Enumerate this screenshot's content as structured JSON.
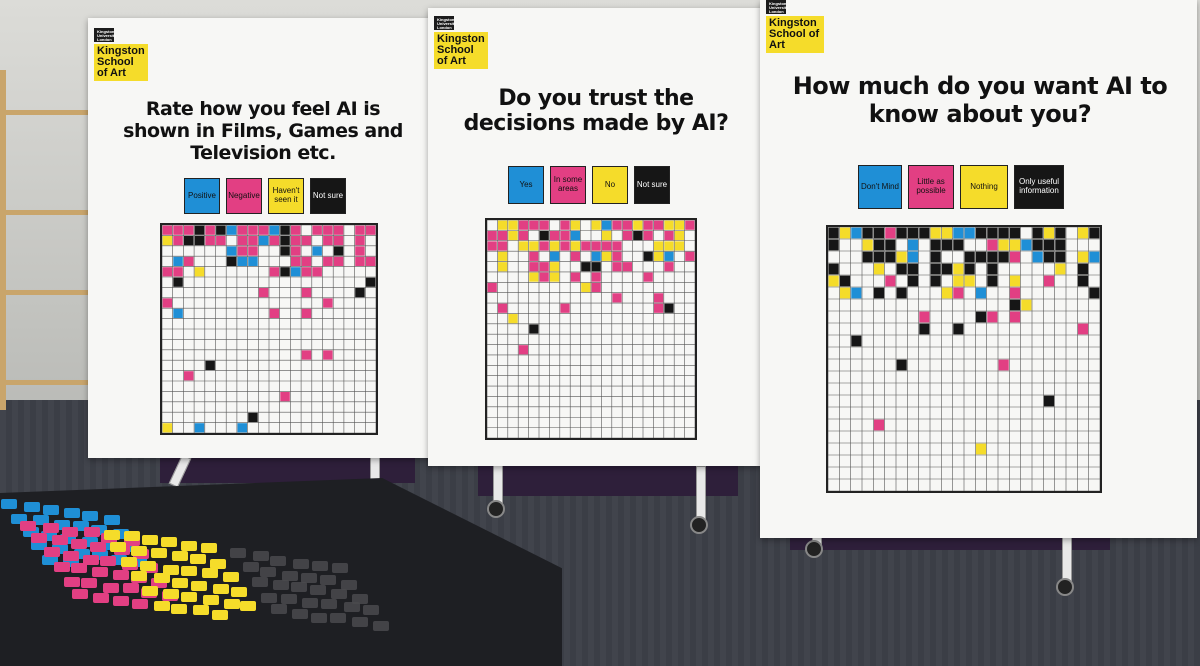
{
  "boards": [
    {
      "logo": {
        "university": "Kingston University London",
        "school": "Kingston School of Art"
      },
      "title": "Rate how you feel AI is shown in Films, Games and Television etc.",
      "legend": [
        {
          "label": "Positive",
          "color": "#1f8fd6",
          "text_color": "#111"
        },
        {
          "label": "Negative",
          "color": "#e23f83",
          "text_color": "#111"
        },
        {
          "label": "Haven't seen it",
          "color": "#f5dc2a",
          "text_color": "#111"
        },
        {
          "label": "Not sure",
          "color": "#161616",
          "text_color": "#fff"
        }
      ]
    },
    {
      "logo": {
        "university": "Kingston University London",
        "school": "Kingston School of Art"
      },
      "title": "Do you trust the decisions made by AI?",
      "legend": [
        {
          "label": "Yes",
          "color": "#1f8fd6",
          "text_color": "#111"
        },
        {
          "label": "In some areas",
          "color": "#e23f83",
          "text_color": "#111"
        },
        {
          "label": "No",
          "color": "#f5dc2a",
          "text_color": "#111"
        },
        {
          "label": "Not sure",
          "color": "#161616",
          "text_color": "#fff"
        }
      ]
    },
    {
      "logo": {
        "university": "Kingston University London",
        "school": "Kingston School of Art"
      },
      "title": "How much do you want AI to know about you?",
      "legend": [
        {
          "label": "Don't Mind",
          "color": "#1f8fd6",
          "text_color": "#111"
        },
        {
          "label": "Little as possible",
          "color": "#e23f83",
          "text_color": "#111"
        },
        {
          "label": "Nothing",
          "color": "#f5dc2a",
          "text_color": "#111"
        },
        {
          "label": "Only useful information",
          "color": "#161616",
          "text_color": "#fff"
        }
      ]
    }
  ],
  "sticker_colors": [
    "#1f8fd6",
    "#e23f83",
    "#f5dc2a",
    "#161616"
  ]
}
